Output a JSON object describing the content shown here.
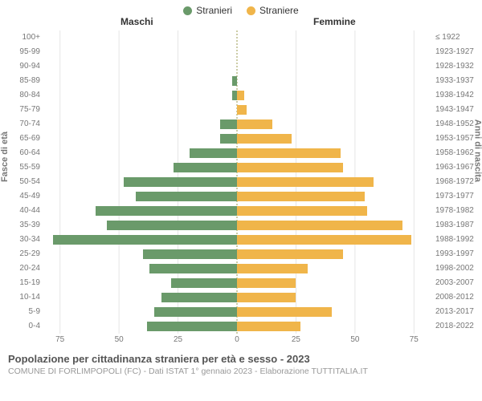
{
  "chart": {
    "type": "population-pyramid",
    "legend": [
      {
        "label": "Stranieri",
        "color": "#6a9a6a"
      },
      {
        "label": "Straniere",
        "color": "#f0b54a"
      }
    ],
    "headers": {
      "left": "Maschi",
      "right": "Femmine"
    },
    "axis_titles": {
      "left": "Fasce di età",
      "right": "Anni di nascita"
    },
    "x_max": 80,
    "x_ticks_left": [
      75,
      50,
      25,
      0
    ],
    "x_ticks_right": [
      0,
      25,
      50,
      75
    ],
    "grid_color": "#e5e5e5",
    "center_line_color": "#99994d",
    "background_color": "#ffffff",
    "bar_colors": {
      "male": "#6a9a6a",
      "female": "#f0b54a"
    },
    "label_fontsize": 10,
    "label_color": "#777777",
    "title": "Popolazione per cittadinanza straniera per età e sesso - 2023",
    "subtitle": "COMUNE DI FORLIMPOPOLI (FC) - Dati ISTAT 1° gennaio 2023 - Elaborazione TUTTITALIA.IT",
    "title_color": "#555555",
    "subtitle_color": "#999999",
    "rows": [
      {
        "age": "100+",
        "birth": "≤ 1922",
        "m": 0,
        "f": 0
      },
      {
        "age": "95-99",
        "birth": "1923-1927",
        "m": 0,
        "f": 0
      },
      {
        "age": "90-94",
        "birth": "1928-1932",
        "m": 0,
        "f": 0
      },
      {
        "age": "85-89",
        "birth": "1933-1937",
        "m": 2,
        "f": 0
      },
      {
        "age": "80-84",
        "birth": "1938-1942",
        "m": 2,
        "f": 3
      },
      {
        "age": "75-79",
        "birth": "1943-1947",
        "m": 0,
        "f": 4
      },
      {
        "age": "70-74",
        "birth": "1948-1952",
        "m": 7,
        "f": 15
      },
      {
        "age": "65-69",
        "birth": "1953-1957",
        "m": 7,
        "f": 23
      },
      {
        "age": "60-64",
        "birth": "1958-1962",
        "m": 20,
        "f": 44
      },
      {
        "age": "55-59",
        "birth": "1963-1967",
        "m": 27,
        "f": 45
      },
      {
        "age": "50-54",
        "birth": "1968-1972",
        "m": 48,
        "f": 58
      },
      {
        "age": "45-49",
        "birth": "1973-1977",
        "m": 43,
        "f": 54
      },
      {
        "age": "40-44",
        "birth": "1978-1982",
        "m": 60,
        "f": 55
      },
      {
        "age": "35-39",
        "birth": "1983-1987",
        "m": 55,
        "f": 70
      },
      {
        "age": "30-34",
        "birth": "1988-1992",
        "m": 78,
        "f": 74
      },
      {
        "age": "25-29",
        "birth": "1993-1997",
        "m": 40,
        "f": 45
      },
      {
        "age": "20-24",
        "birth": "1998-2002",
        "m": 37,
        "f": 30
      },
      {
        "age": "15-19",
        "birth": "2003-2007",
        "m": 28,
        "f": 25
      },
      {
        "age": "10-14",
        "birth": "2008-2012",
        "m": 32,
        "f": 25
      },
      {
        "age": "5-9",
        "birth": "2013-2017",
        "m": 35,
        "f": 40
      },
      {
        "age": "0-4",
        "birth": "2018-2022",
        "m": 38,
        "f": 27
      }
    ]
  }
}
